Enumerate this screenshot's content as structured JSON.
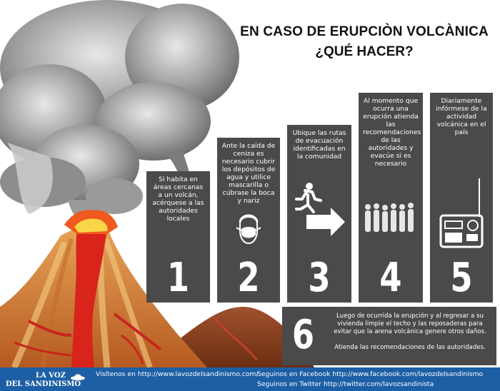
{
  "title": {
    "line1": "EN CASO DE ERUPCIÒN VOLCÀNICA",
    "line2": "¿QUÉ HACER?"
  },
  "steps": [
    {
      "number": "1",
      "text": "Si habita en áreas cercanas a un volcán, acérquese a las autoridades locales"
    },
    {
      "number": "2",
      "text": "Ante la caída de ceniza es necesario cubrir los depósitos de agua y utilice mascarilla o cúbrase la boca y nariz"
    },
    {
      "number": "3",
      "text": "Ubique las rutas de evacuación identificadas en la comunidad"
    },
    {
      "number": "4",
      "text": "Al momento que ocurra una erupción atienda las recomendaciones de las autoridades y evacúe si es necesario"
    },
    {
      "number": "5",
      "text": "Diariamente infórmese de la actividad volcánica en el país"
    }
  ],
  "step6": {
    "number": "6",
    "text1": "Luego de ocurrida la erupción y al regresar a su vivienda limpie el techo y las reposaderas para evitar que la arena volcánica genere otros daños.",
    "text2": "Atienda las recomendaciones de las autoridades."
  },
  "icons": {
    "step2": "face-mask-icon",
    "step3": "evacuation-runner-icon",
    "step4": "people-group-icon",
    "step5": "radio-icon"
  },
  "footer": {
    "logo_line1": "LA VOZ",
    "logo_line2": "DEL SANDINISMO",
    "visit": "Visítenos en http://www.lavozdelsandinismo.com/",
    "facebook": "Seguinos en Facebook http://www.facebook.com/lavozdelsandinismo",
    "twitter": "Seguinos en Twitter http://twitter.com/lavozsandinista"
  },
  "colors": {
    "card": "#4a4a4a",
    "footer": "#1d5fa5",
    "lava": "#e0281a",
    "volcano": "#d98a3a",
    "smoke": "#9c9c9c"
  }
}
